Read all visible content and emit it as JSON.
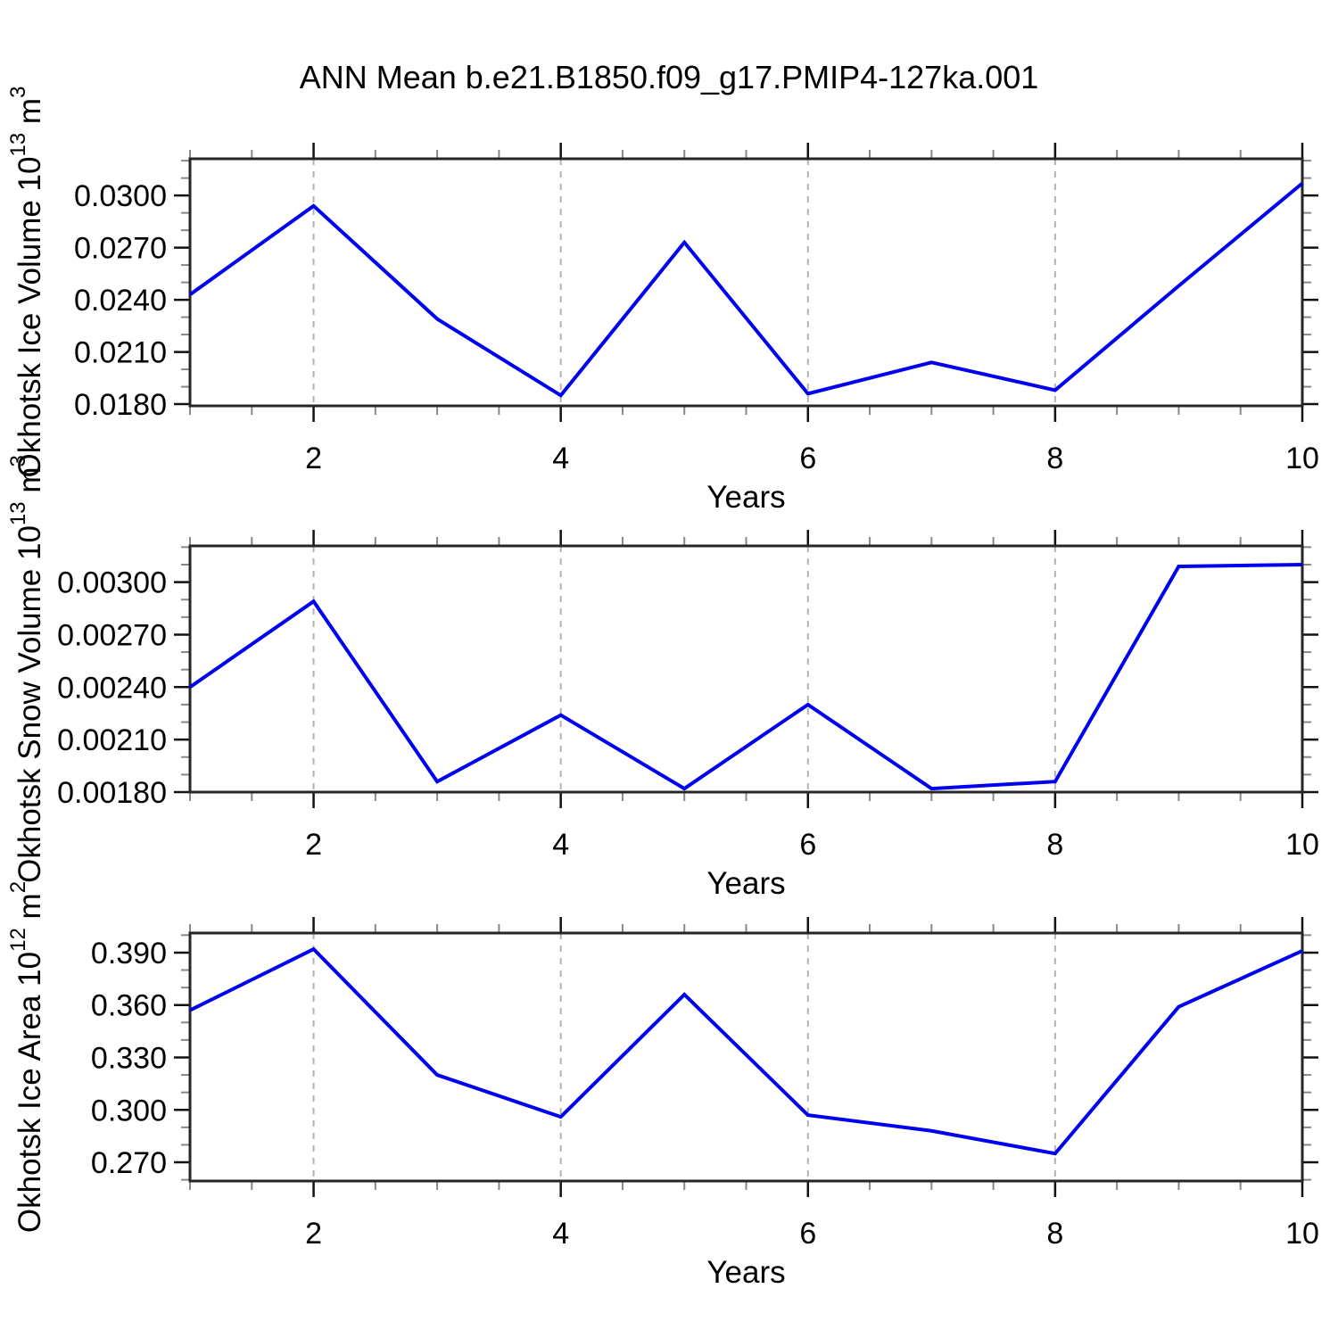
{
  "page_title": "ANN Mean b.e21.B1850.f09_g17.PMIP4-127ka.001",
  "colors": {
    "line": "#0000f0",
    "grid": "#b3b3b3",
    "axis": "#262626",
    "major_tick": "#111111",
    "minor_tick": "#888888",
    "text": "#000000",
    "background": "#ffffff"
  },
  "chart_data": [
    {
      "type": "line",
      "ylabel": "Okhotsk Ice Volume 10^13 m^3",
      "ylabel_base": "Okhotsk Ice Volume 10",
      "ylabel_exp": "13",
      "ylabel_unit": " m",
      "ylabel_unit_exp": "3",
      "xlabel": "Years",
      "x": [
        1,
        2,
        3,
        4,
        5,
        6,
        7,
        8,
        9,
        10
      ],
      "values": [
        0.0243,
        0.0294,
        0.0229,
        0.0185,
        0.0273,
        0.0186,
        0.0204,
        0.0188,
        0.0248,
        0.0307
      ],
      "xlim": [
        1,
        10
      ],
      "ylim": [
        0.0179,
        0.03211
      ],
      "x_ticks_major": [
        2,
        4,
        6,
        8,
        10
      ],
      "x_tick_labels": [
        "2",
        "4",
        "6",
        "8",
        "10"
      ],
      "x_minor_step": 0.5,
      "y_ticks_major": [
        0.018,
        0.021,
        0.024,
        0.027,
        0.03
      ],
      "y_tick_labels": [
        "0.0180",
        "0.0210",
        "0.0240",
        "0.0270",
        "0.0300"
      ],
      "y_minor_step": 0.001,
      "grid_x": [
        2,
        4,
        6,
        8
      ],
      "grid": "vertical-dashed",
      "legend": "none"
    },
    {
      "type": "line",
      "ylabel": "Okhotsk Snow Volume 10^13 m^3",
      "ylabel_base": "Okhotsk Snow Volume 10",
      "ylabel_exp": "13",
      "ylabel_unit": " m",
      "ylabel_unit_exp": "3",
      "xlabel": "Years",
      "x": [
        1,
        2,
        3,
        4,
        5,
        6,
        7,
        8,
        9,
        10
      ],
      "values": [
        0.0024,
        0.00289,
        0.00186,
        0.00224,
        0.00182,
        0.0023,
        0.00182,
        0.00186,
        0.00309,
        0.0031
      ],
      "xlim": [
        1,
        10
      ],
      "ylim": [
        0.0018,
        0.003207
      ],
      "x_ticks_major": [
        2,
        4,
        6,
        8,
        10
      ],
      "x_tick_labels": [
        "2",
        "4",
        "6",
        "8",
        "10"
      ],
      "x_minor_step": 0.5,
      "y_ticks_major": [
        0.0018,
        0.0021,
        0.0024,
        0.0027,
        0.003
      ],
      "y_tick_labels": [
        "0.00180",
        "0.00210",
        "0.00240",
        "0.00270",
        "0.00300"
      ],
      "y_minor_step": 0.0001,
      "grid_x": [
        2,
        4,
        6,
        8
      ],
      "grid": "vertical-dashed",
      "legend": "none"
    },
    {
      "type": "line",
      "ylabel": "Okhotsk Ice Area 10^12 m^2",
      "ylabel_base": "Okhotsk Ice Area 10",
      "ylabel_exp": "12",
      "ylabel_unit": " m",
      "ylabel_unit_exp": "2",
      "xlabel": "Years",
      "x": [
        1,
        2,
        3,
        4,
        5,
        6,
        7,
        8,
        9,
        10
      ],
      "values": [
        0.357,
        0.392,
        0.32,
        0.296,
        0.366,
        0.297,
        0.288,
        0.275,
        0.359,
        0.391
      ],
      "xlim": [
        1,
        10
      ],
      "ylim": [
        0.2593,
        0.4012
      ],
      "x_ticks_major": [
        2,
        4,
        6,
        8,
        10
      ],
      "x_tick_labels": [
        "2",
        "4",
        "6",
        "8",
        "10"
      ],
      "x_minor_step": 0.5,
      "y_ticks_major": [
        0.27,
        0.3,
        0.33,
        0.36,
        0.39
      ],
      "y_tick_labels": [
        "0.270",
        "0.300",
        "0.330",
        "0.360",
        "0.390"
      ],
      "y_minor_step": 0.01,
      "grid_x": [
        2,
        4,
        6,
        8
      ],
      "grid": "vertical-dashed",
      "legend": "none"
    }
  ]
}
